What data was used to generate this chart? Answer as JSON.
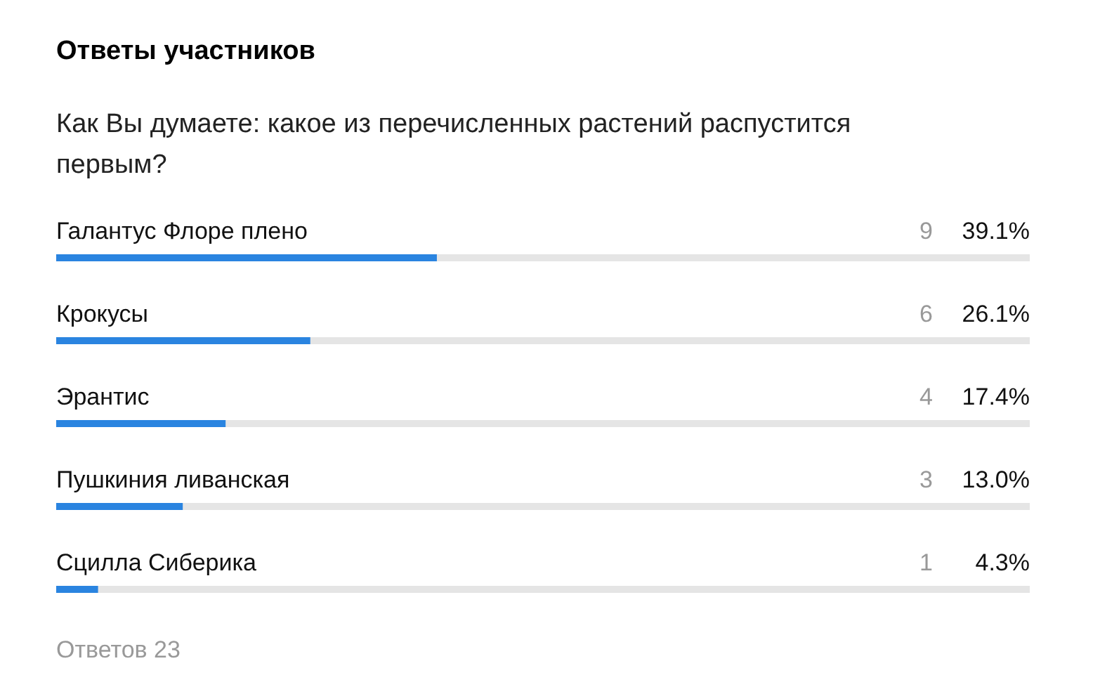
{
  "chart_data": {
    "type": "bar",
    "orientation": "horizontal",
    "title": "Ответы участников",
    "subtitle": "Как Вы думаете: какое из перечисленных растений распустится первым?",
    "categories": [
      "Галантус Флоре плено",
      "Крокусы",
      "Эрантис",
      "Пушкиния ливанская",
      "Сцилла Сиберика"
    ],
    "values": [
      39.1,
      26.1,
      17.4,
      13.0,
      4.3
    ],
    "value_labels": [
      "39.1%",
      "26.1%",
      "17.4%",
      "13.0%",
      "4.3%"
    ],
    "color": "#2a84e0",
    "xlim": [
      0,
      100
    ],
    "tick_labels": false,
    "annotations": [
      "9",
      "6",
      "4",
      "3",
      "1",
      "Ответов 23"
    ]
  }
}
